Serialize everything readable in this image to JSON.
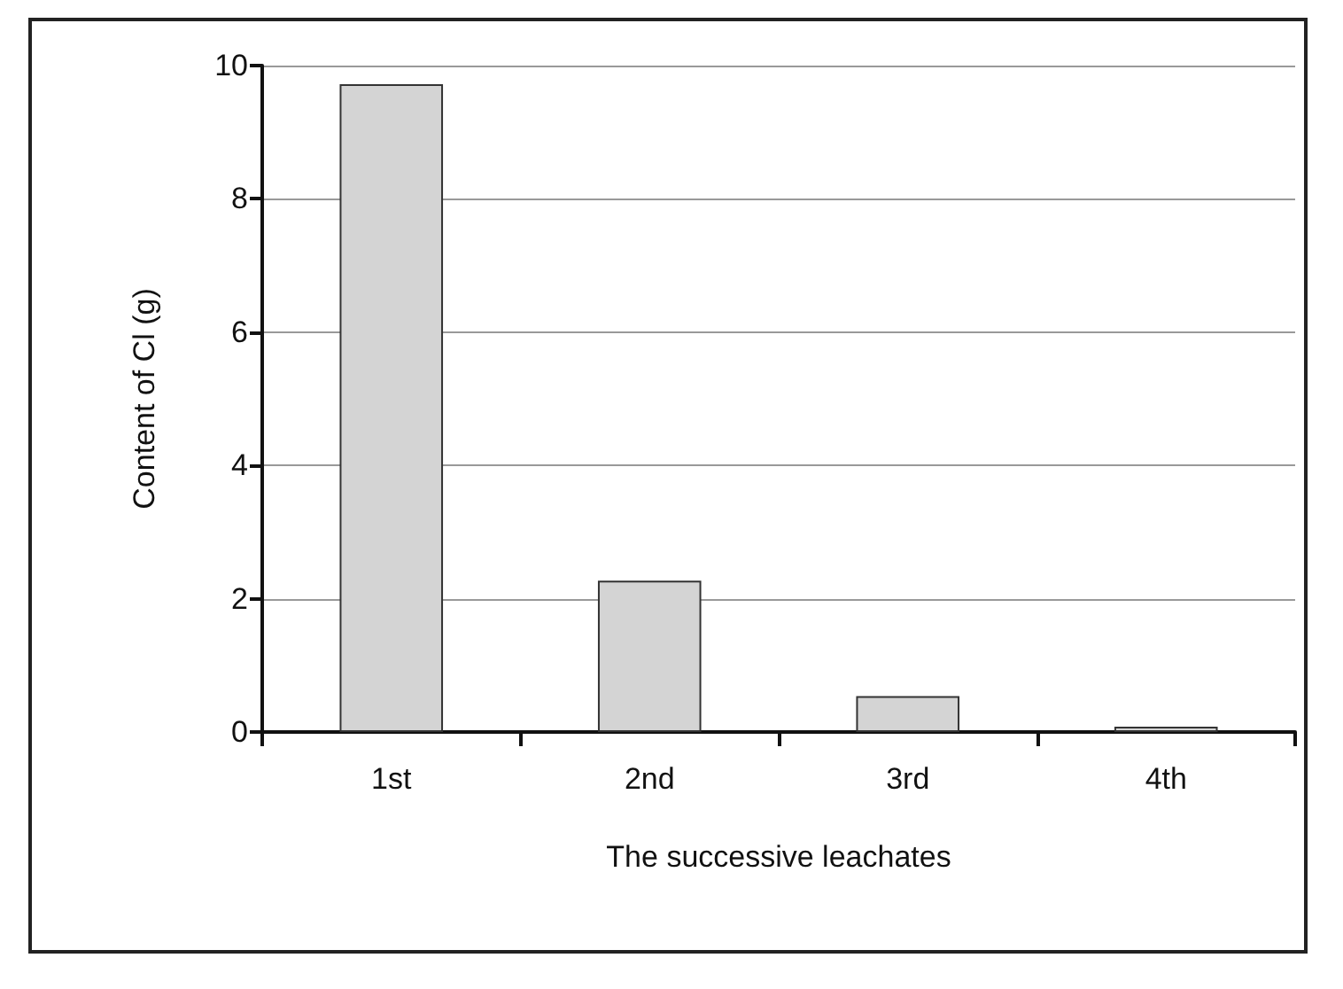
{
  "chart_data": {
    "type": "bar",
    "xlabel": "The successive leachates",
    "ylabel": "Content of Cl (g)",
    "categories": [
      "1st",
      "2nd",
      "3rd",
      "4th"
    ],
    "values": [
      9.72,
      2.27,
      0.54,
      0.08
    ],
    "color": "#d4d4d4",
    "ylim": [
      0,
      10
    ],
    "yticks": [
      0,
      2,
      4,
      6,
      8,
      10
    ],
    "grid": "y"
  }
}
